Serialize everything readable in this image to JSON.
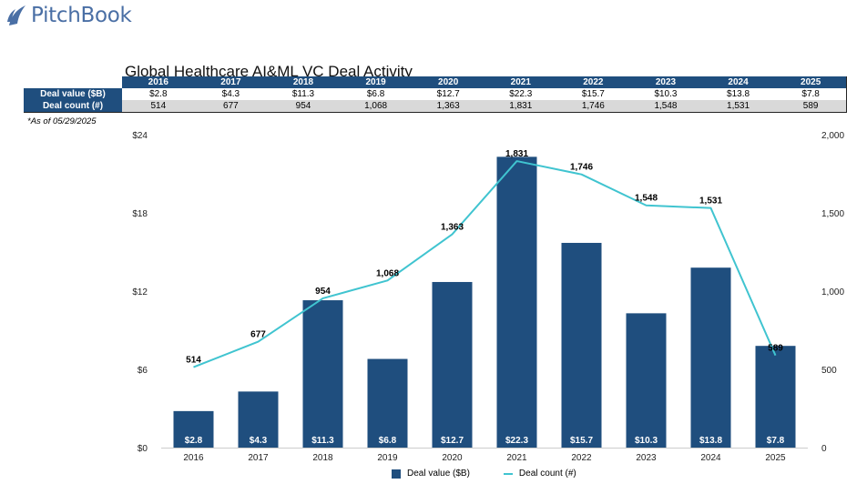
{
  "brand": {
    "name": "PitchBook",
    "logo_icon": "sail-logo-icon",
    "color": "#4a6fa5"
  },
  "footnote": "*As of 05/29/2025",
  "table": {
    "row_labels": [
      "Deal value ($B)",
      "Deal count (#)"
    ],
    "years": [
      "2016",
      "2017",
      "2018",
      "2019",
      "2020",
      "2021",
      "2022",
      "2023",
      "2024",
      "2025"
    ],
    "deal_value": [
      "$2.8",
      "$4.3",
      "$11.3",
      "$6.8",
      "$12.7",
      "$22.3",
      "$15.7",
      "$10.3",
      "$13.8",
      "$7.8"
    ],
    "deal_count": [
      "514",
      "677",
      "954",
      "1,068",
      "1,363",
      "1,831",
      "1,746",
      "1,548",
      "1,531",
      "589"
    ]
  },
  "colors": {
    "bar": "#1f4e7e",
    "line": "#40c4d0",
    "header": "#1f4e7e",
    "row_alt": "#d9d9d9"
  },
  "chart_data": {
    "type": "bar",
    "title": "Global Healthcare AI&ML VC Deal Activity",
    "categories": [
      "2016",
      "2017",
      "2018",
      "2019",
      "2020",
      "2021",
      "2022",
      "2023",
      "2024",
      "2025"
    ],
    "series": [
      {
        "name": "Deal value ($B)",
        "type": "bar",
        "axis": "left",
        "values": [
          2.8,
          4.3,
          11.3,
          6.8,
          12.7,
          22.3,
          15.7,
          10.3,
          13.8,
          7.8
        ],
        "labels": [
          "$2.8",
          "$4.3",
          "$11.3",
          "$6.8",
          "$12.7",
          "$22.3",
          "$15.7",
          "$10.3",
          "$13.8",
          "$7.8"
        ]
      },
      {
        "name": "Deal count (#)",
        "type": "line",
        "axis": "right",
        "values": [
          514,
          677,
          954,
          1068,
          1363,
          1831,
          1746,
          1548,
          1531,
          589
        ],
        "labels": [
          "514",
          "677",
          "954",
          "1,068",
          "1,363",
          "1,831",
          "1,746",
          "1,548",
          "1,531",
          "589"
        ]
      }
    ],
    "y_left": {
      "min": 0,
      "max": 24,
      "ticks": [
        0,
        6,
        12,
        18,
        24
      ],
      "tick_labels": [
        "$0",
        "$6",
        "$12",
        "$18",
        "$24"
      ]
    },
    "y_right": {
      "min": 0,
      "max": 2000,
      "ticks": [
        0,
        500,
        1000,
        1500,
        2000
      ],
      "tick_labels": [
        "0",
        "500",
        "1,000",
        "1,500",
        "2,000"
      ]
    },
    "xlabel": "",
    "ylabel": "",
    "grid": false,
    "legend": {
      "position": "bottom-center",
      "entries": [
        "Deal value ($B)",
        "Deal count (#)"
      ]
    }
  }
}
